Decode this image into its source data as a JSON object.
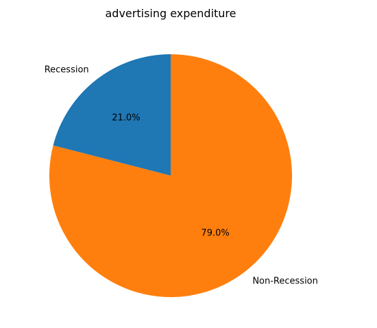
{
  "chart_data": {
    "type": "pie",
    "title": "advertising expenditure",
    "slices": [
      {
        "label": "Recession",
        "value": 21.0,
        "pct_label": "21.0%",
        "color": "#1f77b4"
      },
      {
        "label": "Non-Recession",
        "value": 79.0,
        "pct_label": "79.0%",
        "color": "#ff7f0e"
      }
    ],
    "start_angle_deg": 90,
    "direction": "counterclockwise"
  }
}
